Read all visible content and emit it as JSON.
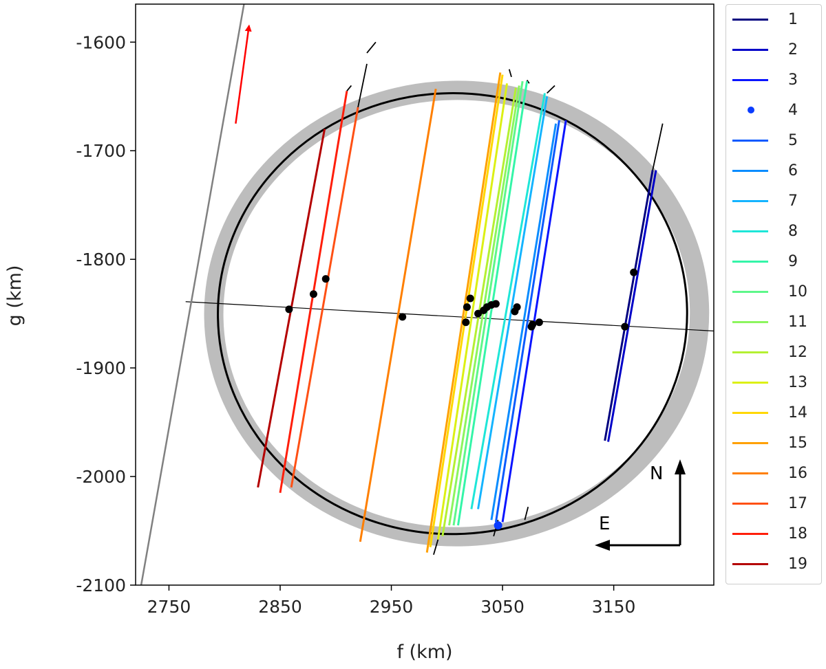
{
  "chart_data": {
    "type": "line",
    "title": "",
    "xlabel": "f (km)",
    "ylabel": "g (km)",
    "xlim": [
      2720,
      3240
    ],
    "ylim": [
      -2100,
      -1565
    ],
    "x_ticks": [
      2750,
      2850,
      2950,
      3050,
      3150
    ],
    "y_ticks": [
      -1600,
      -1700,
      -1800,
      -1900,
      -2000,
      -2100
    ],
    "grid": false,
    "legend_position": "outside-right",
    "compass": {
      "north": "N",
      "east": "E"
    },
    "ellipse": {
      "center": [
        3005,
        -1850
      ],
      "semi_major": 211,
      "semi_minor": 203,
      "rotation_deg": -1,
      "color": "#000000",
      "uncertainty_band_color": "#bdbdbd"
    },
    "reference_line": {
      "points": [
        [
          2765,
          -1839
        ],
        [
          3240,
          -1866
        ]
      ],
      "color": "#000000"
    },
    "limb_line": {
      "points": [
        [
          2725,
          -2100
        ],
        [
          2818,
          -1562
        ]
      ],
      "color": "#808080"
    },
    "motion_arrow": {
      "from": [
        2810,
        -1675
      ],
      "to": [
        2822,
        -1585
      ],
      "color": "#ff0000"
    },
    "series": [
      {
        "name": "1",
        "color": "#00007f",
        "points": [
          [
            3142,
            -1967
          ],
          [
            3185,
            -1718
          ]
        ]
      },
      {
        "name": "2",
        "color": "#0000c8",
        "points": [
          [
            3145,
            -1968
          ],
          [
            3188,
            -1718
          ]
        ]
      },
      {
        "name": "3",
        "color": "#0a14ff",
        "points": [
          [
            3050,
            -2042
          ],
          [
            3107,
            -1672
          ]
        ]
      },
      {
        "name": "4",
        "color": "#0a3cff",
        "marker": "point",
        "points": [
          [
            3046,
            -2045
          ]
        ]
      },
      {
        "name": "5",
        "color": "#0a5aff",
        "points": [
          [
            3044,
            -2042
          ],
          [
            3101,
            -1672
          ]
        ]
      },
      {
        "name": "6",
        "color": "#0a8cff",
        "points": [
          [
            3040,
            -2040
          ],
          [
            3098,
            -1675
          ]
        ]
      },
      {
        "name": "7",
        "color": "#14b4ff",
        "points": [
          [
            3028,
            -2030
          ],
          [
            3090,
            -1650
          ]
        ]
      },
      {
        "name": "8",
        "color": "#1ee6d8",
        "points": [
          [
            3022,
            -2030
          ],
          [
            3088,
            -1647
          ]
        ]
      },
      {
        "name": "9",
        "color": "#34f5a8",
        "points": [
          [
            3010,
            -2045
          ],
          [
            3072,
            -1636
          ]
        ]
      },
      {
        "name": "10",
        "color": "#5ef78a",
        "points": [
          [
            3006,
            -2045
          ],
          [
            3068,
            -1636
          ]
        ]
      },
      {
        "name": "11",
        "color": "#8cf55e",
        "points": [
          [
            3002,
            -2045
          ],
          [
            3065,
            -1640
          ]
        ]
      },
      {
        "name": "12",
        "color": "#b4f032",
        "points": [
          [
            2996,
            -2055
          ],
          [
            3062,
            -1642
          ]
        ]
      },
      {
        "name": "13",
        "color": "#dcf014",
        "points": [
          [
            2992,
            -2058
          ],
          [
            3054,
            -1638
          ]
        ]
      },
      {
        "name": "14",
        "color": "#ffd700",
        "points": [
          [
            2985,
            -2065
          ],
          [
            3050,
            -1630
          ]
        ]
      },
      {
        "name": "15",
        "color": "#ffa000",
        "points": [
          [
            2982,
            -2070
          ],
          [
            3048,
            -1628
          ]
        ]
      },
      {
        "name": "16",
        "color": "#ff7f00",
        "points": [
          [
            2922,
            -2060
          ],
          [
            2990,
            -1643
          ]
        ]
      },
      {
        "name": "17",
        "color": "#ff5014",
        "points": [
          [
            2860,
            -2010
          ],
          [
            2920,
            -1660
          ]
        ]
      },
      {
        "name": "18",
        "color": "#ff1e0a",
        "points": [
          [
            2850,
            -2015
          ],
          [
            2910,
            -1645
          ]
        ]
      },
      {
        "name": "19",
        "color": "#b40000",
        "points": [
          [
            2830,
            -2010
          ],
          [
            2890,
            -1680
          ]
        ]
      }
    ],
    "extension_lines": [
      [
        [
          2988,
          -2072
        ],
        [
          2992,
          -2058
        ]
      ],
      [
        [
          3056,
          -1625
        ],
        [
          3058,
          -1632
        ]
      ],
      [
        [
          3070,
          -2040
        ],
        [
          3073,
          -2028
        ]
      ],
      [
        [
          3042,
          -2055
        ],
        [
          3046,
          -2040
        ]
      ],
      [
        [
          3090,
          -1647
        ],
        [
          3097,
          -1640
        ]
      ],
      [
        [
          3072,
          -1635
        ],
        [
          3074,
          -1638
        ]
      ],
      [
        [
          2920,
          -1660
        ],
        [
          2928,
          -1620
        ]
      ],
      [
        [
          2910,
          -1645
        ],
        [
          2914,
          -1640
        ]
      ],
      [
        [
          2928,
          -1610
        ],
        [
          2936,
          -1600
        ]
      ],
      [
        [
          3185,
          -1718
        ],
        [
          3194,
          -1675
        ]
      ]
    ],
    "timing_points": [
      [
        2858,
        -1846
      ],
      [
        2880,
        -1832
      ],
      [
        2891,
        -1818
      ],
      [
        2960,
        -1853
      ],
      [
        3017,
        -1858
      ],
      [
        3018,
        -1844
      ],
      [
        3021,
        -1836
      ],
      [
        3028,
        -1850
      ],
      [
        3033,
        -1847
      ],
      [
        3036,
        -1844
      ],
      [
        3040,
        -1842
      ],
      [
        3044,
        -1841
      ],
      [
        3061,
        -1848
      ],
      [
        3063,
        -1844
      ],
      [
        3076,
        -1862
      ],
      [
        3077,
        -1860
      ],
      [
        3083,
        -1858
      ],
      [
        3160,
        -1862
      ],
      [
        3168,
        -1812
      ]
    ]
  }
}
